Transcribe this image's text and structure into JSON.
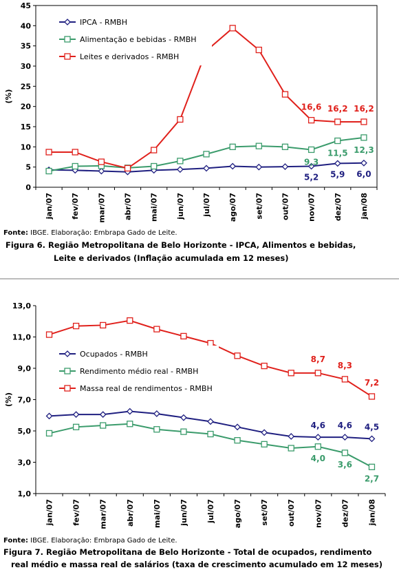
{
  "chart_data": [
    {
      "type": "line",
      "y_label": "(%)",
      "categories": [
        "jan/07",
        "fev/07",
        "mar/07",
        "abr/07",
        "mai/07",
        "jun/07",
        "jul/07",
        "ago/07",
        "set/07",
        "out/07",
        "nov/07",
        "dez/07",
        "jan/08"
      ],
      "ylim": [
        0,
        45
      ],
      "yticks": [
        0,
        5,
        10,
        15,
        20,
        25,
        30,
        35,
        40,
        45
      ],
      "series": [
        {
          "name": "IPCA - RMBH",
          "color": "#1f1f80",
          "marker": "diamond",
          "values": [
            4.3,
            4.2,
            4.0,
            3.8,
            4.2,
            4.4,
            4.7,
            5.2,
            5.0,
            5.1,
            5.2,
            5.9,
            6.0
          ],
          "value_labels": [
            null,
            null,
            null,
            null,
            null,
            null,
            null,
            null,
            null,
            null,
            "5,2",
            "5,9",
            "6,0"
          ]
        },
        {
          "name": "Alimentação e bebidas - RMBH",
          "color": "#3a9b6b",
          "marker": "square",
          "values": [
            4.0,
            5.2,
            5.3,
            4.8,
            5.2,
            6.5,
            8.2,
            10.0,
            10.2,
            10.0,
            9.3,
            11.5,
            12.3
          ],
          "value_labels": [
            null,
            null,
            null,
            null,
            null,
            null,
            null,
            null,
            null,
            null,
            "9,3",
            "11,5",
            "12,3"
          ]
        },
        {
          "name": "Leites e derivados - RMBH",
          "color": "#e0201b",
          "marker": "square",
          "values": [
            8.7,
            8.7,
            6.3,
            4.7,
            9.2,
            16.8,
            33.8,
            39.4,
            34.0,
            23.0,
            16.6,
            16.2,
            16.2
          ],
          "value_labels": [
            null,
            null,
            null,
            null,
            null,
            null,
            null,
            null,
            null,
            null,
            "16,6",
            "16,2",
            "16,2"
          ]
        }
      ],
      "source_label": "Fonte:",
      "source": " IBGE. Elaboração: Embrapa Gado de Leite.",
      "caption": [
        "Figura 6. Região Metropolitana de Belo Horizonte - IPCA, Alimentos e bebidas,",
        "Leite e derivados (Inflação acumulada em 12 meses)"
      ]
    },
    {
      "type": "line",
      "y_label": "(%)",
      "categories": [
        "jan/07",
        "fev/07",
        "mar/07",
        "abr/07",
        "mai/07",
        "jun/07",
        "jul/07",
        "ago/07",
        "set/07",
        "out/07",
        "nov/07",
        "dez/07",
        "jan/08"
      ],
      "ylim": [
        1,
        13
      ],
      "yticks": [
        {
          "value": 1,
          "label": "1,0"
        },
        {
          "value": 3,
          "label": "3,0"
        },
        {
          "value": 5,
          "label": "5,0"
        },
        {
          "value": 7,
          "label": "7,0"
        },
        {
          "value": 9,
          "label": "9,0"
        },
        {
          "value": 11,
          "label": "11,0"
        },
        {
          "value": 13,
          "label": "13,0"
        }
      ],
      "series": [
        {
          "name": "Ocupados - RMBH",
          "color": "#1f1f80",
          "marker": "diamond",
          "values": [
            5.95,
            6.05,
            6.05,
            6.25,
            6.1,
            5.85,
            5.6,
            5.25,
            4.9,
            4.65,
            4.6,
            4.6,
            4.5
          ],
          "value_labels": [
            null,
            null,
            null,
            null,
            null,
            null,
            null,
            null,
            null,
            null,
            "4,6",
            "4,6",
            "4,5"
          ]
        },
        {
          "name": "Rendimento médio real - RMBH",
          "color": "#3a9b6b",
          "marker": "square",
          "values": [
            4.85,
            5.25,
            5.35,
            5.45,
            5.1,
            4.95,
            4.8,
            4.4,
            4.15,
            3.9,
            4.0,
            3.6,
            2.7
          ],
          "value_labels": [
            null,
            null,
            null,
            null,
            null,
            null,
            null,
            null,
            null,
            null,
            "4,0",
            "3,6",
            "2,7"
          ]
        },
        {
          "name": "Massa real de rendimentos - RMBH",
          "color": "#e0201b",
          "marker": "square",
          "values": [
            11.15,
            11.7,
            11.75,
            12.05,
            11.5,
            11.05,
            10.6,
            9.8,
            9.15,
            8.7,
            8.7,
            8.3,
            7.2
          ],
          "value_labels": [
            null,
            null,
            null,
            null,
            null,
            null,
            null,
            null,
            null,
            null,
            "8,7",
            "8,3",
            "7,2"
          ]
        }
      ],
      "source_label": "Fonte:",
      "source": " IBGE. Elaboração: Embrapa Gado de Leite.",
      "caption": [
        "Figura 7. Região Metropolitana de Belo Horizonte - Total de ocupados, rendimento",
        "real médio e massa real de salários (taxa de crescimento acumulado em 12 meses)"
      ]
    }
  ]
}
